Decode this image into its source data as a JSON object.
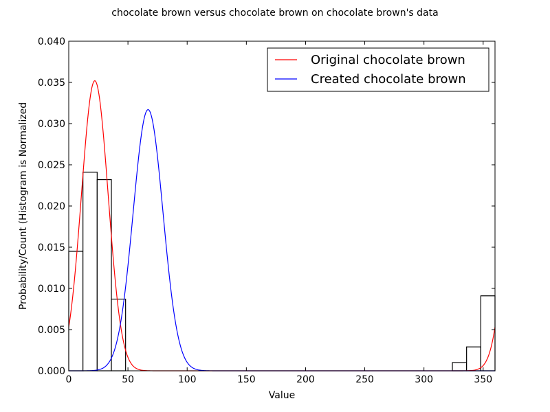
{
  "chart_data": {
    "type": "histogram+line",
    "title": "chocolate brown versus chocolate brown on chocolate brown's data",
    "xlabel": "Value",
    "ylabel": "Probability/Count (Histogram is Normalized",
    "xlim": [
      0,
      360
    ],
    "ylim": [
      0,
      0.04
    ],
    "xticks": [
      0,
      50,
      100,
      150,
      200,
      250,
      300,
      350
    ],
    "xtick_labels": [
      "0",
      "50",
      "100",
      "150",
      "200",
      "250",
      "300",
      "350"
    ],
    "yticks": [
      0,
      0.005,
      0.01,
      0.015,
      0.02,
      0.025,
      0.03,
      0.035,
      0.04
    ],
    "ytick_labels": [
      "0.000",
      "0.005",
      "0.010",
      "0.015",
      "0.020",
      "0.025",
      "0.030",
      "0.035",
      "0.040"
    ],
    "legend_position": "top-right",
    "histogram": {
      "bin_width": 12,
      "bins": [
        {
          "x0": 0,
          "x1": 12,
          "value": 0.0145
        },
        {
          "x0": 12,
          "x1": 24,
          "value": 0.0241
        },
        {
          "x0": 24,
          "x1": 36,
          "value": 0.0232
        },
        {
          "x0": 36,
          "x1": 48,
          "value": 0.0087
        },
        {
          "x0": 324,
          "x1": 336,
          "value": 0.001
        },
        {
          "x0": 336,
          "x1": 348,
          "value": 0.0029
        },
        {
          "x0": 348,
          "x1": 360,
          "value": 0.0091
        }
      ]
    },
    "series": [
      {
        "name": "Original chocolate brown",
        "color": "#ff0000",
        "kind": "gaussian",
        "mean": 22,
        "sd": 11.3,
        "peak": 0.0352,
        "wrap_period": 360
      },
      {
        "name": "Created chocolate brown",
        "color": "#0000ff",
        "kind": "gaussian",
        "mean": 67,
        "sd": 12.6,
        "peak": 0.0317,
        "wrap_period": 360
      }
    ]
  }
}
